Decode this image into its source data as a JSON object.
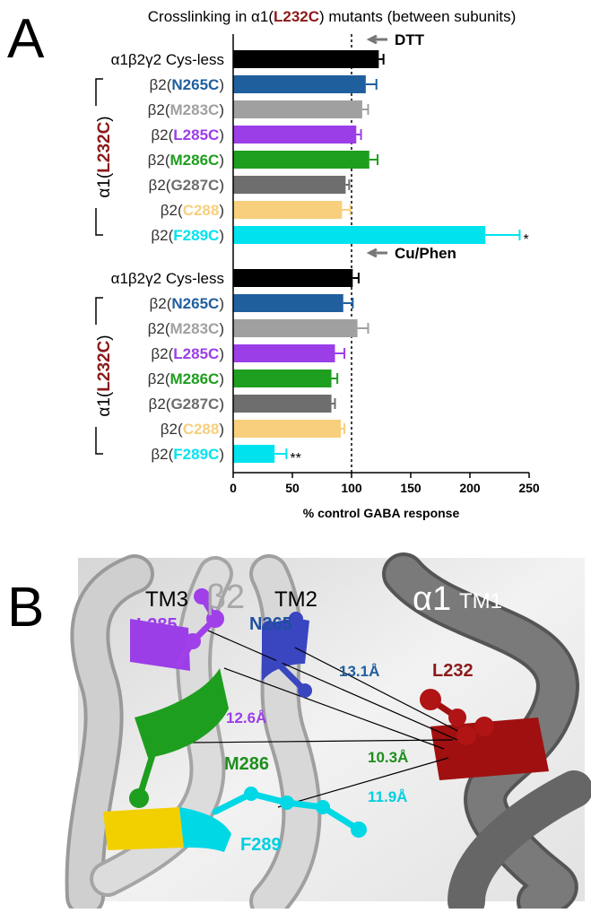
{
  "panel_a": {
    "letter": "A",
    "chart_data": {
      "type": "bar",
      "orientation": "horizontal",
      "title": "Crosslinking in α1(L232C) mutants (between subunits)",
      "title_highlight_color": "#8b1a1a",
      "xlabel": "% control GABA response",
      "xlim": [
        0,
        250
      ],
      "xticks": [
        0,
        50,
        100,
        150,
        200,
        250
      ],
      "reference_line": 100,
      "side_label": "α1(L232C)",
      "side_label_color": "#8b1a1a",
      "categories": [
        "α1β2γ2 Cys-less",
        "β2(N265C)",
        "β2(M283C)",
        "β2(L285C)",
        "β2(M286C)",
        "β2(G287C)",
        "β2(C288)",
        "β2(F289C)"
      ],
      "colors": [
        "#000000",
        "#1f5f9e",
        "#a0a0a0",
        "#9b3ee8",
        "#1e9e1e",
        "#6e6e6e",
        "#f7cf7d",
        "#00e3ef"
      ],
      "groups": [
        {
          "name": "DTT",
          "values": [
            123,
            112,
            109,
            104,
            115,
            95,
            92,
            213
          ],
          "errors": [
            4,
            9,
            5,
            4,
            7,
            3,
            7,
            29
          ],
          "marks": [
            null,
            null,
            null,
            null,
            null,
            null,
            null,
            "*"
          ]
        },
        {
          "name": "Cu/Phen",
          "values": [
            101,
            93,
            105,
            86,
            83,
            83,
            91,
            35
          ],
          "errors": [
            5,
            8,
            9,
            8,
            5,
            3,
            3,
            10
          ],
          "marks": [
            null,
            null,
            null,
            null,
            null,
            null,
            null,
            "**"
          ]
        }
      ]
    }
  },
  "panel_b": {
    "letter": "B",
    "labels": {
      "beta2": "β2",
      "tm3": "TM3",
      "tm2": "TM2",
      "alpha1": "α1",
      "tm1": "TM1",
      "n265": "N265",
      "l285": "L285",
      "l232": "L232",
      "m286": "M286",
      "f289": "F289"
    },
    "distances": [
      "13.1Å",
      "12.6Å",
      "10.3Å",
      "11.9Å"
    ]
  }
}
